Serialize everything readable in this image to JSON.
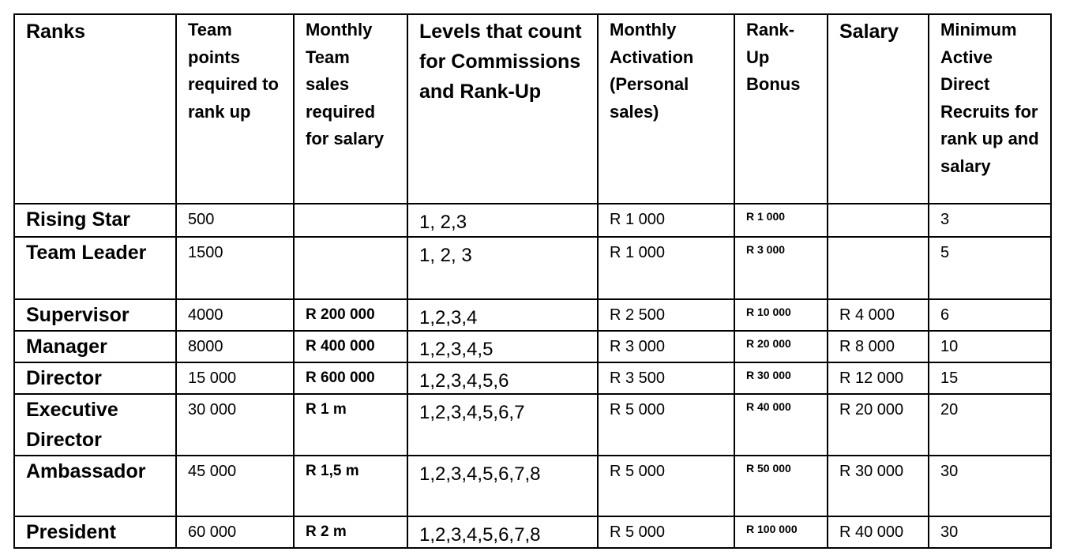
{
  "headers": [
    "Ranks",
    "Team points required to rank up",
    "Monthly Team sales required for salary",
    "Levels that count for Commissions and Rank-Up",
    "Monthly Activation (Personal sales)",
    "Rank-Up Bonus",
    "Salary",
    "Minimum Active Direct Recruits for rank up and salary"
  ],
  "rows": [
    {
      "rank": "Rising Star",
      "points": "500",
      "sales": "",
      "levels": "1, 2,3",
      "activation": "R 1 000",
      "bonus": "R 1 000",
      "salary": "",
      "recruits": "3"
    },
    {
      "rank": "Team Leader",
      "points": "1500",
      "sales": "",
      "levels": "1, 2, 3",
      "activation": "R 1 000",
      "bonus": "R 3 000",
      "salary": "",
      "recruits": "5"
    },
    {
      "rank": "Supervisor",
      "points": "4000",
      "sales": "R 200 000",
      "levels": "1,2,3,4",
      "activation": "R 2 500",
      "bonus": "R 10 000",
      "salary": "R 4 000",
      "recruits": "6"
    },
    {
      "rank": "Manager",
      "points": "8000",
      "sales": "R 400 000",
      "levels": "1,2,3,4,5",
      "activation": "R 3 000",
      "bonus": "R 20 000",
      "salary": "R 8 000",
      "recruits": "10"
    },
    {
      "rank": "Director",
      "points": "15 000",
      "sales": "R 600 000",
      "levels": "1,2,3,4,5,6",
      "activation": "R 3 500",
      "bonus": "R 30 000",
      "salary": "R 12 000",
      "recruits": "15"
    },
    {
      "rank": "Executive Director",
      "points": "30 000",
      "sales": "R 1 m",
      "levels": "1,2,3,4,5,6,7",
      "activation": "R 5 000",
      "bonus": "R 40 000",
      "salary": "R 20 000",
      "recruits": "20"
    },
    {
      "rank": "Ambassador",
      "points": "45 000",
      "sales": "R 1,5 m",
      "levels": "1,2,3,4,5,6,7,8",
      "activation": "R 5 000",
      "bonus": "R 50 000",
      "salary": "R 30 000",
      "recruits": "30"
    },
    {
      "rank": "President",
      "points": "60 000",
      "sales": "R 2 m",
      "levels": "1,2,3,4,5,6,7,8",
      "activation": "R 5 000",
      "bonus": "R 100 000",
      "salary": "R 40 000",
      "recruits": "30"
    }
  ]
}
